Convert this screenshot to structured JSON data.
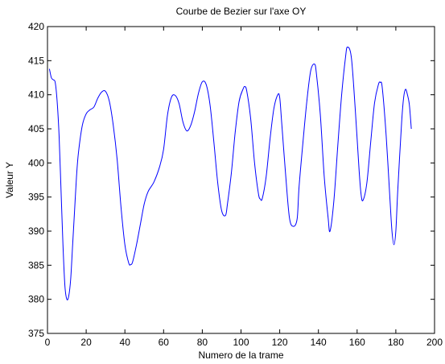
{
  "chart_data": {
    "type": "line",
    "title": "Courbe de Bezier sur l'axe OY",
    "xlabel": "Numero de la trame",
    "ylabel": "Valeur Y",
    "xlim": [
      0,
      200
    ],
    "ylim": [
      375,
      420
    ],
    "xticks": [
      0,
      20,
      40,
      60,
      80,
      100,
      120,
      140,
      160,
      180,
      200
    ],
    "yticks": [
      375,
      380,
      385,
      390,
      395,
      400,
      405,
      410,
      415,
      420
    ],
    "xtick_labels": [
      "0",
      "20",
      "40",
      "60",
      "80",
      "100",
      "120",
      "140",
      "160",
      "180",
      "200"
    ],
    "ytick_labels": [
      "375",
      "380",
      "385",
      "390",
      "395",
      "400",
      "405",
      "410",
      "415",
      "420"
    ],
    "grid": false,
    "series": [
      {
        "color": "#0000ff",
        "x": [
          1,
          2,
          3,
          4,
          5,
          6,
          7,
          8,
          9,
          10,
          11,
          12,
          13,
          14,
          15,
          16,
          18,
          20,
          22,
          24,
          26,
          28,
          30,
          32,
          34,
          36,
          38,
          40,
          42,
          43,
          44,
          46,
          48,
          50,
          52,
          55,
          58,
          60,
          62,
          64,
          66,
          68,
          70,
          72,
          74,
          76,
          78,
          80,
          82,
          84,
          86,
          88,
          90,
          92,
          93,
          95,
          97,
          99,
          101,
          102,
          103,
          105,
          107,
          109,
          110,
          111,
          113,
          115,
          117,
          119,
          120,
          121,
          123,
          125,
          127,
          129,
          130,
          132,
          134,
          136,
          138,
          139,
          141,
          143,
          145,
          146,
          148,
          150,
          152,
          154,
          155,
          157,
          159,
          161,
          162,
          163,
          165,
          167,
          169,
          171,
          172,
          173,
          175,
          177,
          178,
          179,
          180,
          181,
          183,
          184,
          185,
          186,
          187,
          188
        ],
        "y": [
          413.8,
          412.5,
          412.2,
          411.8,
          409,
          404,
          396,
          388,
          382,
          380,
          380.5,
          383,
          388,
          393,
          398,
          401.5,
          405.5,
          407.2,
          407.8,
          408.2,
          409.5,
          410.4,
          410.5,
          409,
          405.5,
          400.5,
          393.5,
          388,
          385.3,
          385.1,
          385.5,
          388,
          391,
          394,
          395.8,
          397.2,
          399.5,
          402,
          407,
          409.6,
          409.9,
          408.7,
          406,
          404.7,
          405.5,
          407.5,
          410.2,
          411.9,
          411.5,
          408.5,
          403,
          397,
          393,
          392.3,
          394,
          398.5,
          404.5,
          409,
          410.8,
          411.2,
          410.5,
          406.5,
          400,
          395.5,
          394.7,
          394.8,
          398,
          403.5,
          408,
          410,
          409.6,
          406,
          398.5,
          392,
          390.7,
          391.8,
          396.5,
          403,
          409,
          413.5,
          414.5,
          413,
          407,
          398,
          392,
          390,
          394.5,
          402.5,
          410,
          415.5,
          417,
          415.5,
          408,
          399,
          395.5,
          394.5,
          397,
          403,
          408.8,
          411.5,
          411.8,
          411,
          404,
          394.5,
          390,
          388,
          390,
          396,
          406,
          409.5,
          410.8,
          410,
          408.5,
          405
        ]
      }
    ]
  }
}
